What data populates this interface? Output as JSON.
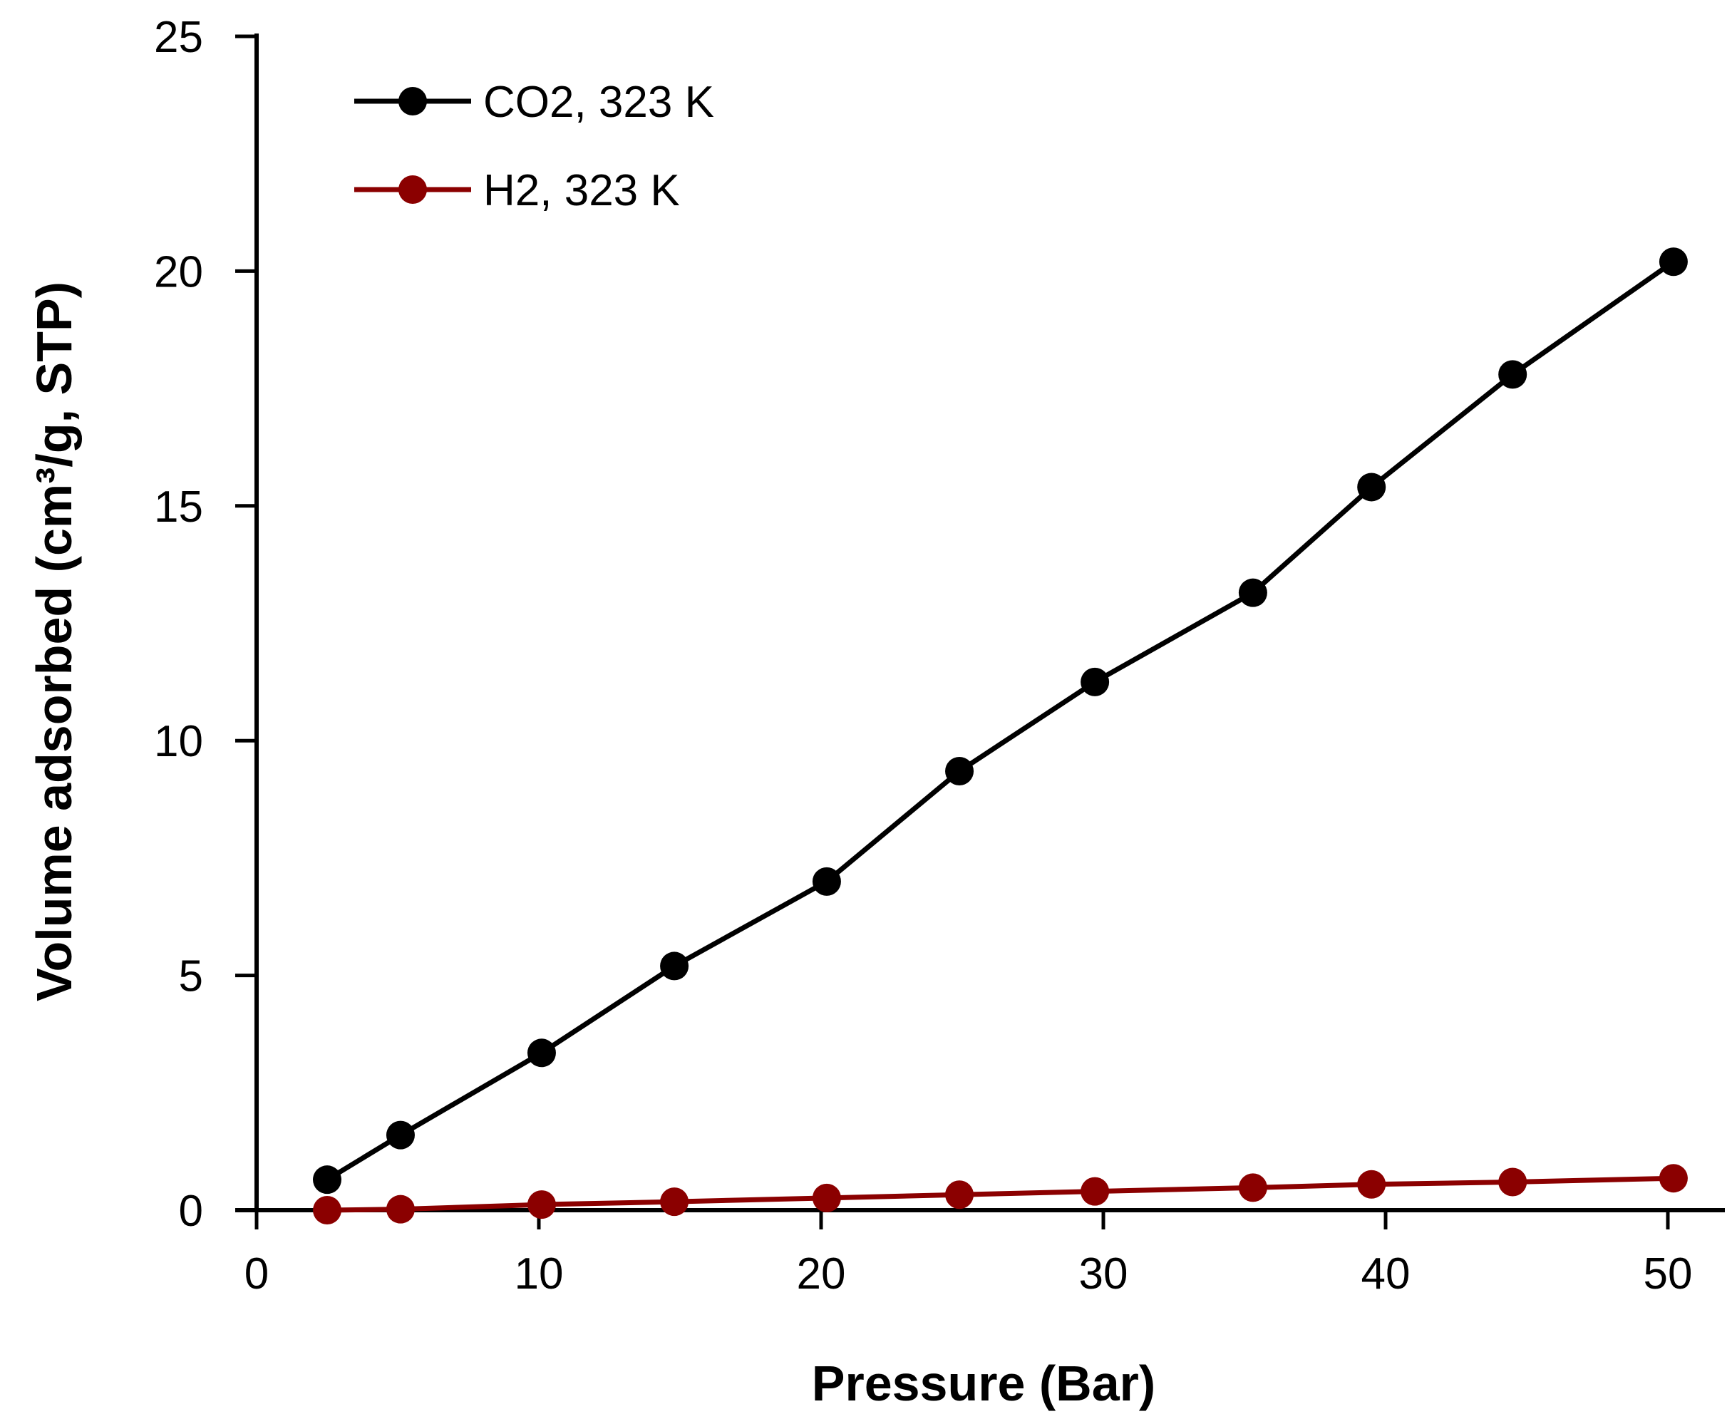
{
  "chart_data": {
    "type": "line",
    "title": "",
    "xlabel": "Pressure (Bar)",
    "ylabel": "Volume adsorbed (cm³/g, STP)",
    "xlim": [
      0,
      50
    ],
    "ylim": [
      0,
      25
    ],
    "xticks": [
      0,
      10,
      20,
      30,
      40,
      50
    ],
    "yticks": [
      0,
      5,
      10,
      15,
      20,
      25
    ],
    "grid": false,
    "legend_position": "top-left",
    "series": [
      {
        "name": "CO2, 323 K",
        "color": "#000000",
        "x": [
          2.5,
          5.1,
          10.1,
          14.8,
          20.2,
          24.9,
          29.7,
          35.3,
          39.5,
          44.5,
          50.2
        ],
        "y": [
          0.65,
          1.6,
          3.35,
          5.2,
          7.0,
          9.35,
          11.25,
          13.15,
          15.4,
          17.8,
          20.2
        ]
      },
      {
        "name": "H2, 323 K",
        "color": "#8b0000",
        "x": [
          2.5,
          5.1,
          10.1,
          14.8,
          20.2,
          24.9,
          29.7,
          35.3,
          39.5,
          44.5,
          50.2
        ],
        "y": [
          0.0,
          0.02,
          0.12,
          0.18,
          0.26,
          0.33,
          0.4,
          0.48,
          0.55,
          0.6,
          0.68
        ]
      }
    ]
  }
}
